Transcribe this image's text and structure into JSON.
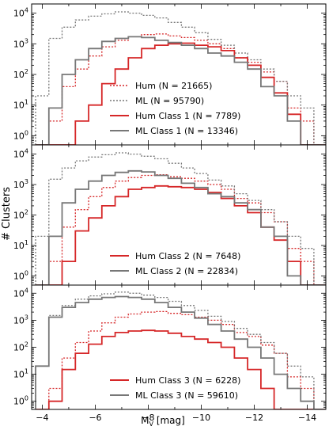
{
  "figure": {
    "ylabel": "# Clusters",
    "xlabel_main": "M",
    "xlabel_sub": "V",
    "xlabel_unit": " [mag]"
  },
  "colors": {
    "hum": "#d62728",
    "ml": "#777777"
  },
  "chart_data": [
    {
      "type": "step-histogram",
      "panel": 1,
      "x_axis": {
        "range": [
          -3.6,
          -14.7
        ],
        "reversed": true,
        "ticks": [
          -4,
          -6,
          -8,
          -10,
          -12,
          -14
        ]
      },
      "y_axis": {
        "scale": "log",
        "range": [
          0.5,
          20000
        ],
        "ticks": [
          "10^0",
          "10^1",
          "10^2",
          "10^3",
          "10^4"
        ]
      },
      "bin_edges": [
        -3.75,
        -4.25,
        -4.75,
        -5.25,
        -5.75,
        -6.25,
        -6.75,
        -7.25,
        -7.75,
        -8.25,
        -8.75,
        -9.25,
        -9.75,
        -10.25,
        -10.75,
        -11.25,
        -11.75,
        -12.25,
        -12.75,
        -13.25,
        -13.75,
        -14.25,
        -14.75
      ],
      "legend": {
        "location": "lower-center"
      },
      "series": [
        {
          "name": "Hum (N = 21665)",
          "style": "dotted",
          "color": "hum",
          "counts": [
            0,
            3,
            40,
            150,
            400,
            800,
            1300,
            1700,
            2000,
            2100,
            1800,
            1600,
            1300,
            1000,
            700,
            350,
            250,
            120,
            60,
            8,
            3,
            0
          ]
        },
        {
          "name": "ML (N = 95790)",
          "style": "dotted",
          "color": "ml",
          "counts": [
            20,
            1500,
            3500,
            6000,
            8000,
            9500,
            11000,
            10000,
            8500,
            7000,
            5000,
            3500,
            2300,
            1400,
            900,
            500,
            300,
            150,
            60,
            20,
            8,
            0
          ]
        },
        {
          "name": "Hum Class 1 (N = 7789)",
          "style": "solid",
          "color": "hum",
          "counts": [
            0,
            0,
            0,
            3,
            10,
            50,
            150,
            350,
            700,
            900,
            1000,
            1050,
            900,
            800,
            600,
            350,
            200,
            80,
            25,
            5,
            0,
            0
          ]
        },
        {
          "name": "ML Class 1 (N = 13346)",
          "style": "solid",
          "color": "ml",
          "counts": [
            0,
            8,
            100,
            300,
            700,
            1200,
            1500,
            1700,
            1600,
            1300,
            1100,
            900,
            700,
            500,
            400,
            250,
            150,
            40,
            20,
            3,
            0,
            0
          ]
        }
      ]
    },
    {
      "type": "step-histogram",
      "panel": 2,
      "x_axis": {
        "range": [
          -3.6,
          -14.7
        ],
        "reversed": true,
        "ticks": [
          -4,
          -6,
          -8,
          -10,
          -12,
          -14
        ]
      },
      "y_axis": {
        "scale": "log",
        "range": [
          0.5,
          20000
        ],
        "ticks": [
          "10^0",
          "10^1",
          "10^2",
          "10^3",
          "10^4"
        ]
      },
      "bin_edges": [
        -3.75,
        -4.25,
        -4.75,
        -5.25,
        -5.75,
        -6.25,
        -6.75,
        -7.25,
        -7.75,
        -8.25,
        -8.75,
        -9.25,
        -9.75,
        -10.25,
        -10.75,
        -11.25,
        -11.75,
        -12.25,
        -12.75,
        -13.25,
        -13.75,
        -14.25,
        -14.75
      ],
      "legend": {
        "location": "lower-center"
      },
      "series": [
        {
          "name": "Hum (N = 21665)",
          "style": "dotted",
          "color": "hum",
          "legend": false,
          "counts": [
            0,
            3,
            40,
            150,
            400,
            800,
            1300,
            1700,
            2000,
            2100,
            1800,
            1600,
            1300,
            1000,
            700,
            350,
            250,
            120,
            60,
            8,
            3,
            0
          ]
        },
        {
          "name": "ML (N = 95790)",
          "style": "dotted",
          "color": "ml",
          "legend": false,
          "counts": [
            20,
            1500,
            3500,
            6000,
            8000,
            9500,
            11000,
            10000,
            8500,
            7000,
            5000,
            3500,
            2300,
            1400,
            900,
            500,
            300,
            150,
            60,
            20,
            8,
            0
          ]
        },
        {
          "name": "Hum Class 2 (N = 7648)",
          "style": "solid",
          "color": "hum",
          "counts": [
            0,
            0,
            3,
            30,
            80,
            200,
            400,
            700,
            800,
            900,
            850,
            800,
            700,
            550,
            350,
            200,
            120,
            40,
            15,
            3,
            0,
            0
          ]
        },
        {
          "name": "ML Class 2 (N = 22834)",
          "style": "solid",
          "color": "ml",
          "counts": [
            0,
            20,
            250,
            700,
            1300,
            2000,
            2500,
            2800,
            2600,
            2000,
            1600,
            1100,
            800,
            500,
            400,
            250,
            150,
            40,
            20,
            1,
            0,
            0
          ]
        }
      ]
    },
    {
      "type": "step-histogram",
      "panel": 3,
      "x_axis": {
        "range": [
          -3.6,
          -14.7
        ],
        "reversed": true,
        "ticks": [
          -4,
          -6,
          -8,
          -10,
          -12,
          -14
        ]
      },
      "y_axis": {
        "scale": "log",
        "range": [
          0.5,
          20000
        ],
        "ticks": [
          "10^0",
          "10^1",
          "10^2",
          "10^3",
          "10^4"
        ]
      },
      "bin_edges": [
        -3.75,
        -4.25,
        -4.75,
        -5.25,
        -5.75,
        -6.25,
        -6.75,
        -7.25,
        -7.75,
        -8.25,
        -8.75,
        -9.25,
        -9.75,
        -10.25,
        -10.75,
        -11.25,
        -11.75,
        -12.25,
        -12.75,
        -13.25,
        -13.75,
        -14.25,
        -14.75
      ],
      "legend": {
        "location": "lower-center"
      },
      "series": [
        {
          "name": "Hum (N = 21665)",
          "style": "dotted",
          "color": "hum",
          "legend": false,
          "counts": [
            0,
            3,
            40,
            150,
            400,
            800,
            1300,
            1700,
            2000,
            2100,
            1800,
            1600,
            1300,
            1000,
            700,
            350,
            250,
            120,
            60,
            8,
            3,
            0
          ]
        },
        {
          "name": "ML (N = 95790)",
          "style": "dotted",
          "color": "ml",
          "legend": false,
          "counts": [
            20,
            1500,
            3500,
            6000,
            8000,
            9500,
            11000,
            10000,
            8500,
            7000,
            5000,
            3500,
            2300,
            1400,
            900,
            500,
            300,
            150,
            60,
            20,
            8,
            0
          ]
        },
        {
          "name": "Hum Class 3 (N = 6228)",
          "style": "solid",
          "color": "hum",
          "counts": [
            0,
            1,
            15,
            60,
            130,
            250,
            350,
            400,
            420,
            400,
            330,
            250,
            200,
            150,
            100,
            40,
            15,
            3,
            0,
            0,
            0,
            0
          ]
        },
        {
          "name": "ML Class 3 (N = 59610)",
          "style": "solid",
          "color": "ml",
          "counts": [
            20,
            1300,
            3000,
            4500,
            6000,
            7000,
            7500,
            7000,
            6000,
            4500,
            3000,
            2000,
            1200,
            700,
            400,
            200,
            100,
            40,
            10,
            3,
            1,
            0
          ]
        }
      ]
    }
  ]
}
